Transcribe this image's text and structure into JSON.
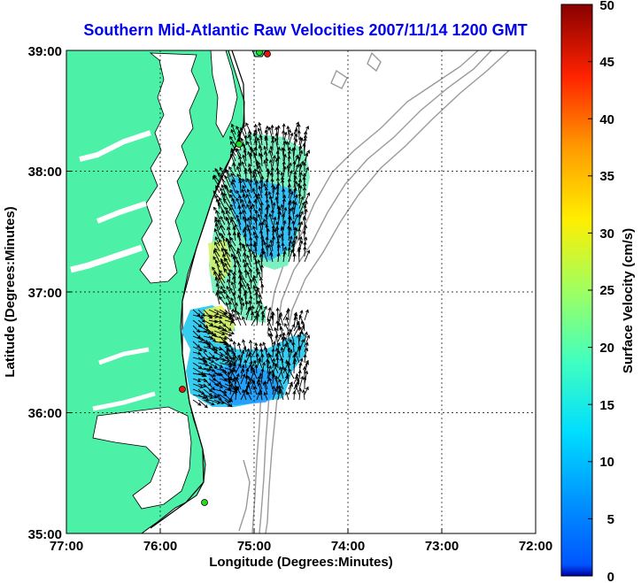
{
  "title": "Southern Mid-Atlantic Raw Velocities 2007/11/14 1200 GMT",
  "xlabel": "Longitude (Degrees:Minutes)",
  "ylabel": "Latitude (Degrees:Minutes)",
  "colorbar_label": "Surface Velocity (cm/s)",
  "x_ticks": [
    "77:00",
    "76:00",
    "75:00",
    "74:00",
    "73:00",
    "72:00"
  ],
  "y_ticks": [
    "39:00",
    "38:00",
    "37:00",
    "36:00",
    "35:00"
  ],
  "colorbar_ticks": [
    "50",
    "45",
    "40",
    "35",
    "30",
    "25",
    "20",
    "15",
    "10",
    "5",
    "0"
  ],
  "colors": {
    "title": "#0000ee",
    "land": "#4cf0a6",
    "coast": "#000000",
    "bathymetry": "#9a9a9a",
    "grid": "#000000",
    "stations_green": "#22dd22",
    "stations_red": "#ee1111"
  },
  "chart_data": {
    "type": "map",
    "title": "Southern Mid-Atlantic Raw Velocities 2007/11/14 1200 GMT",
    "xlabel": "Longitude (Degrees:Minutes)",
    "ylabel": "Latitude (Degrees:Minutes)",
    "xlim": [
      -77,
      -72
    ],
    "ylim": [
      35,
      39
    ],
    "grid": true,
    "colorbar": {
      "label": "Surface Velocity (cm/s)",
      "range": [
        0,
        50
      ],
      "colormap": "jet"
    },
    "stations": [
      {
        "lon": -74.86,
        "lat": 38.97,
        "color": "red"
      },
      {
        "lon": -74.95,
        "lat": 38.97,
        "color": "green"
      },
      {
        "lon": -75.14,
        "lat": 38.22,
        "color": "green"
      },
      {
        "lon": -75.75,
        "lat": 36.18,
        "color": "red"
      },
      {
        "lon": -75.52,
        "lat": 35.26,
        "color": "green"
      }
    ]
  }
}
